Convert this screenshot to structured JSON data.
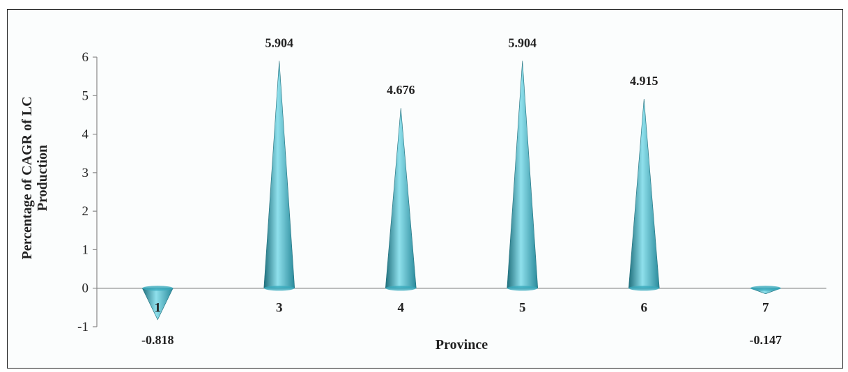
{
  "chart_data": {
    "type": "bar",
    "bar_shape": "cone",
    "categories": [
      "1",
      "3",
      "4",
      "5",
      "6",
      "7"
    ],
    "values": [
      -0.818,
      5.904,
      4.676,
      5.904,
      4.915,
      -0.147
    ],
    "data_labels": [
      "-0.818",
      "5.904",
      "4.676",
      "5.904",
      "4.915",
      "-0.147"
    ],
    "title": "",
    "xlabel": "Province",
    "ylabel": [
      "Percentage of CAGR of LC",
      "Production"
    ],
    "ylim": [
      -1,
      6
    ],
    "yticks": [
      -1,
      0,
      1,
      2,
      3,
      4,
      5,
      6
    ],
    "grid": false,
    "legend": "none",
    "colors": {
      "bar_light": "#8fe0ec",
      "bar_mid": "#3aaabd",
      "bar_dark": "#1f6f7c",
      "axis": "#888888"
    }
  }
}
